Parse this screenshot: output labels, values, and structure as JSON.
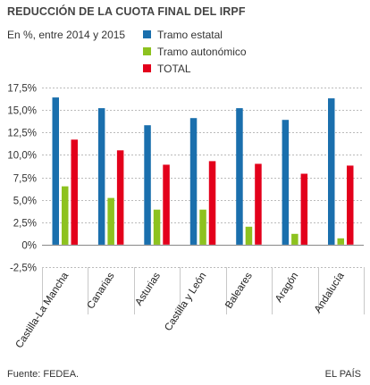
{
  "header": {
    "title": "REDUCCIÓN DE LA CUOTA FINAL DEL IRPF",
    "subtitle": "En %, entre 2014 y 2015"
  },
  "footer": {
    "source": "Fuente: FEDEA.",
    "brand": "EL PAÍS"
  },
  "chart_data": {
    "type": "bar",
    "title": "REDUCCIÓN DE LA CUOTA FINAL DEL IRPF",
    "subtitle": "En %, entre 2014 y 2015",
    "xlabel": "",
    "ylabel": "",
    "ylim": [
      -2.5,
      17.5
    ],
    "yticks": [
      -2.5,
      0,
      2.5,
      5,
      7.5,
      10,
      12.5,
      15,
      17.5
    ],
    "ytick_labels": [
      "-2,5%",
      "0%",
      "2,5%",
      "5,0%",
      "7,5%",
      "10,0%",
      "12,5%",
      "15,0%",
      "17,5%"
    ],
    "grid": true,
    "legend_position": "top",
    "categories": [
      "Castilla-La Mancha",
      "Canarias",
      "Asturias",
      "Castilla y León",
      "Baleares",
      "Aragón",
      "Andalucía"
    ],
    "series": [
      {
        "name": "Tramo estatal",
        "color": "#1a6fad",
        "values": [
          16.4,
          15.2,
          13.3,
          14.1,
          15.2,
          13.9,
          16.3
        ]
      },
      {
        "name": "Tramo autonómico",
        "color": "#8dc21f",
        "values": [
          6.5,
          5.2,
          3.9,
          3.9,
          2.0,
          1.2,
          0.7
        ]
      },
      {
        "name": "TOTAL",
        "color": "#e3001b",
        "values": [
          11.7,
          10.5,
          8.9,
          9.3,
          9.0,
          7.9,
          8.8
        ]
      }
    ]
  }
}
